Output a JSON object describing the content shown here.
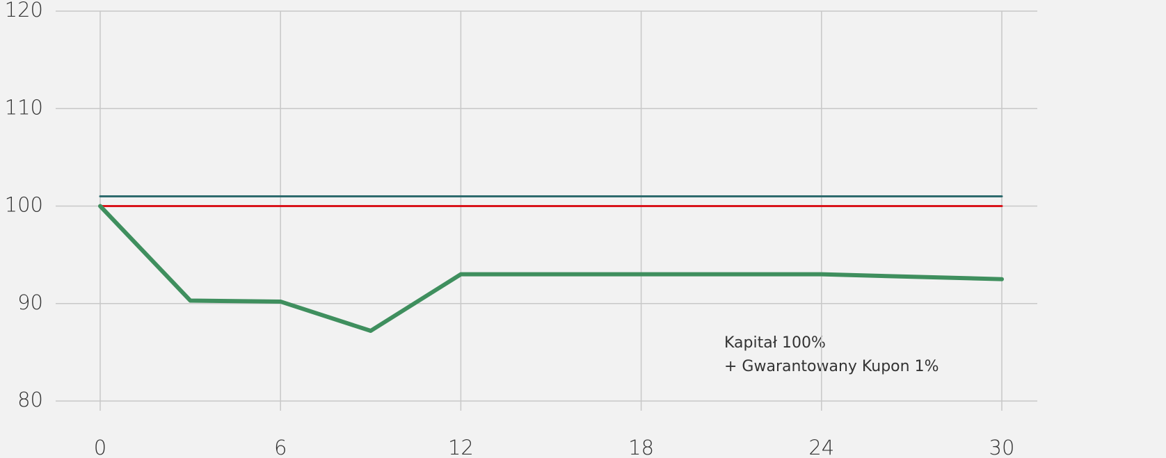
{
  "chart_data": {
    "type": "line",
    "annotation": [
      "Kapitał 100%",
      "+ Gwarantowany Kupon 1%"
    ],
    "series": [
      {
        "color": "#2e6b6e",
        "x": [
          0,
          30
        ],
        "values": [
          101,
          101
        ]
      },
      {
        "color": "#d9141b",
        "x": [
          0,
          30
        ],
        "values": [
          100,
          100
        ]
      },
      {
        "color": "#3f8f5e",
        "x": [
          0,
          3,
          6,
          9,
          12,
          18,
          24,
          30
        ],
        "values": [
          100,
          90.3,
          90.2,
          87.2,
          93,
          93,
          93,
          92.5
        ]
      }
    ],
    "xlim": [
      0,
      30
    ],
    "xticks": [
      0,
      6,
      12,
      18,
      24,
      30
    ],
    "ylim": [
      80,
      120
    ],
    "yticks": [
      80,
      90,
      100,
      110,
      120
    ],
    "grid": true
  }
}
